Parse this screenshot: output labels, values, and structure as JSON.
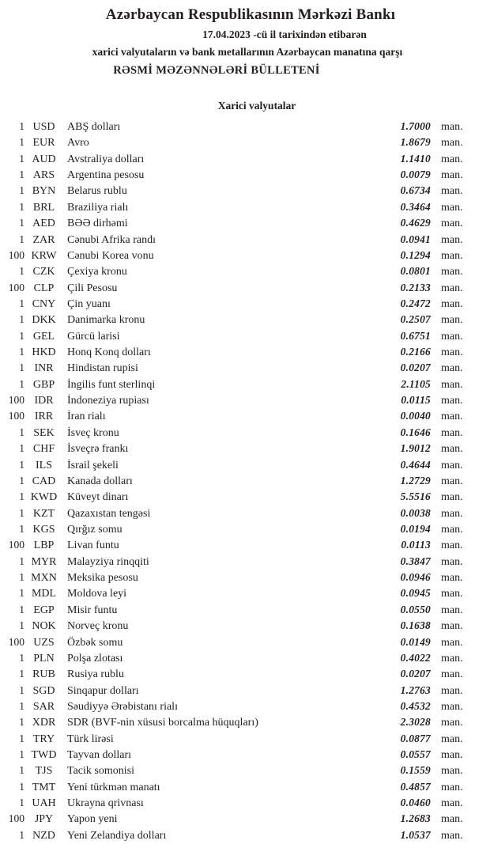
{
  "header": {
    "title": "Azərbaycan Respublikasının Mərkəzi Bankı",
    "date_line": "17.04.2023 -cü il tarixindən etibarən",
    "subtitle": "xarici valyutaların və bank metallarının Azərbaycan manatına qarşı",
    "bulletin_title": "RƏSMİ MƏZƏNNƏLƏRİ BÜLLETENİ"
  },
  "section": {
    "title": "Xarici valyutalar"
  },
  "unit_label": "man.",
  "rates": [
    {
      "qty": "1",
      "code": "USD",
      "name": "ABŞ dolları",
      "rate": "1.7000"
    },
    {
      "qty": "1",
      "code": "EUR",
      "name": "Avro",
      "rate": "1.8679"
    },
    {
      "qty": "1",
      "code": "AUD",
      "name": "Avstraliya dolları",
      "rate": "1.1410"
    },
    {
      "qty": "1",
      "code": "ARS",
      "name": "Argentina pesosu",
      "rate": "0.0079"
    },
    {
      "qty": "1",
      "code": "BYN",
      "name": "Belarus rublu",
      "rate": "0.6734"
    },
    {
      "qty": "1",
      "code": "BRL",
      "name": "Braziliya rialı",
      "rate": "0.3464"
    },
    {
      "qty": "1",
      "code": "AED",
      "name": "BƏƏ dirhəmi",
      "rate": "0.4629"
    },
    {
      "qty": "1",
      "code": "ZAR",
      "name": "Cənubi Afrika randı",
      "rate": "0.0941"
    },
    {
      "qty": "100",
      "code": "KRW",
      "name": "Cənubi Korea vonu",
      "rate": "0.1294"
    },
    {
      "qty": "1",
      "code": "CZK",
      "name": "Çexiya kronu",
      "rate": "0.0801"
    },
    {
      "qty": "100",
      "code": "CLP",
      "name": "Çili Pesosu",
      "rate": "0.2133"
    },
    {
      "qty": "1",
      "code": "CNY",
      "name": "Çin yuanı",
      "rate": "0.2472"
    },
    {
      "qty": "1",
      "code": "DKK",
      "name": "Danimarka kronu",
      "rate": "0.2507"
    },
    {
      "qty": "1",
      "code": "GEL",
      "name": "Gürcü larisi",
      "rate": "0.6751"
    },
    {
      "qty": "1",
      "code": "HKD",
      "name": "Honq Konq dolları",
      "rate": "0.2166"
    },
    {
      "qty": "1",
      "code": "INR",
      "name": "Hindistan rupisi",
      "rate": "0.0207"
    },
    {
      "qty": "1",
      "code": "GBP",
      "name": "İngilis funt sterlinqi",
      "rate": "2.1105"
    },
    {
      "qty": "100",
      "code": "IDR",
      "name": "İndoneziya rupiası",
      "rate": "0.0115"
    },
    {
      "qty": "100",
      "code": "IRR",
      "name": "İran rialı",
      "rate": "0.0040"
    },
    {
      "qty": "1",
      "code": "SEK",
      "name": "İsveç kronu",
      "rate": "0.1646"
    },
    {
      "qty": "1",
      "code": "CHF",
      "name": "İsveçrə frankı",
      "rate": "1.9012"
    },
    {
      "qty": "1",
      "code": "ILS",
      "name": "İsrail şekeli",
      "rate": "0.4644"
    },
    {
      "qty": "1",
      "code": "CAD",
      "name": "Kanada dolları",
      "rate": "1.2729"
    },
    {
      "qty": "1",
      "code": "KWD",
      "name": "Küveyt dinarı",
      "rate": "5.5516"
    },
    {
      "qty": "1",
      "code": "KZT",
      "name": "Qazaxıstan tengəsi",
      "rate": "0.0038"
    },
    {
      "qty": "1",
      "code": "KGS",
      "name": "Qırğız somu",
      "rate": "0.0194"
    },
    {
      "qty": "100",
      "code": "LBP",
      "name": "Livan funtu",
      "rate": "0.0113"
    },
    {
      "qty": "1",
      "code": "MYR",
      "name": "Malayziya rinqqiti",
      "rate": "0.3847"
    },
    {
      "qty": "1",
      "code": "MXN",
      "name": "Meksika pesosu",
      "rate": "0.0946"
    },
    {
      "qty": "1",
      "code": "MDL",
      "name": "Moldova leyi",
      "rate": "0.0945"
    },
    {
      "qty": "1",
      "code": "EGP",
      "name": "Misir funtu",
      "rate": "0.0550"
    },
    {
      "qty": "1",
      "code": "NOK",
      "name": "Norveç kronu",
      "rate": "0.1638"
    },
    {
      "qty": "100",
      "code": "UZS",
      "name": "Özbək somu",
      "rate": "0.0149"
    },
    {
      "qty": "1",
      "code": "PLN",
      "name": "Polşa zlotası",
      "rate": "0.4022"
    },
    {
      "qty": "1",
      "code": "RUB",
      "name": "Rusiya rublu",
      "rate": "0.0207"
    },
    {
      "qty": "1",
      "code": "SGD",
      "name": "Sinqapur dolları",
      "rate": "1.2763"
    },
    {
      "qty": "1",
      "code": "SAR",
      "name": "Səudiyyə Ərəbistanı rialı",
      "rate": "0.4532"
    },
    {
      "qty": "1",
      "code": "XDR",
      "name": "SDR (BVF-nin xüsusi borcalma hüquqları)",
      "rate": "2.3028"
    },
    {
      "qty": "1",
      "code": "TRY",
      "name": "Türk lirəsi",
      "rate": "0.0877"
    },
    {
      "qty": "1",
      "code": "TWD",
      "name": "Tayvan dolları",
      "rate": "0.0557"
    },
    {
      "qty": "1",
      "code": "TJS",
      "name": "Tacik somonisi",
      "rate": "0.1559"
    },
    {
      "qty": "1",
      "code": "TMT",
      "name": "Yeni türkmən manatı",
      "rate": "0.4857"
    },
    {
      "qty": "1",
      "code": "UAH",
      "name": "Ukrayna qrivnası",
      "rate": "0.0460"
    },
    {
      "qty": "100",
      "code": "JPY",
      "name": "Yapon yeni",
      "rate": "1.2683"
    },
    {
      "qty": "1",
      "code": "NZD",
      "name": "Yeni Zelandiya dolları",
      "rate": "1.0537"
    }
  ]
}
